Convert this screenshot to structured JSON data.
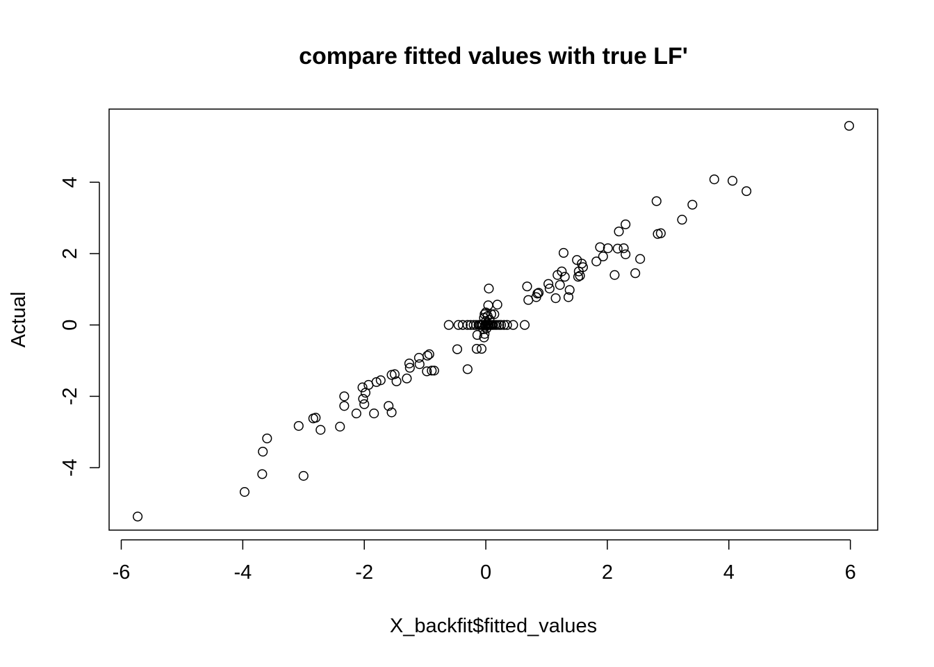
{
  "chart_data": {
    "type": "scatter",
    "title": "compare fitted values with true LF'",
    "xlabel": "X_backfit$fitted_values",
    "ylabel": "Actual",
    "xlim": [
      -6.2,
      6.45
    ],
    "ylim": [
      -5.75,
      6.05
    ],
    "xticks": [
      -6,
      -4,
      -2,
      0,
      2,
      4,
      6
    ],
    "xtick_labels": [
      "-6",
      "-4",
      "-2",
      "0",
      "2",
      "4",
      "6"
    ],
    "yticks": [
      -4,
      -2,
      0,
      2,
      4
    ],
    "ytick_labels": [
      "-4",
      "-2",
      "0",
      "2",
      "4"
    ],
    "grid": false,
    "marker": "open-circle",
    "points": [
      [
        -5.73,
        -5.37
      ],
      [
        -3.97,
        -4.68
      ],
      [
        -3.68,
        -4.18
      ],
      [
        -3.67,
        -3.55
      ],
      [
        -3.6,
        -3.18
      ],
      [
        -3.0,
        -4.23
      ],
      [
        -3.08,
        -2.83
      ],
      [
        -2.84,
        -2.62
      ],
      [
        -2.8,
        -2.6
      ],
      [
        -2.72,
        -2.94
      ],
      [
        -2.4,
        -2.85
      ],
      [
        -2.33,
        -2.27
      ],
      [
        -2.33,
        -2.0
      ],
      [
        -2.13,
        -2.48
      ],
      [
        -2.03,
        -1.75
      ],
      [
        -2.02,
        -2.07
      ],
      [
        -2.0,
        -2.22
      ],
      [
        -1.98,
        -1.9
      ],
      [
        -1.93,
        -1.68
      ],
      [
        -1.84,
        -2.48
      ],
      [
        -1.8,
        -1.6
      ],
      [
        -1.73,
        -1.55
      ],
      [
        -1.6,
        -2.27
      ],
      [
        -1.55,
        -2.45
      ],
      [
        -1.55,
        -1.4
      ],
      [
        -1.5,
        -1.38
      ],
      [
        -1.47,
        -1.58
      ],
      [
        -1.3,
        -1.5
      ],
      [
        -1.26,
        -1.08
      ],
      [
        -1.25,
        -1.2
      ],
      [
        -1.1,
        -0.92
      ],
      [
        -1.09,
        -1.1
      ],
      [
        -0.97,
        -1.3
      ],
      [
        -0.96,
        -0.86
      ],
      [
        -0.93,
        -0.82
      ],
      [
        -0.89,
        -1.28
      ],
      [
        -0.85,
        -1.28
      ],
      [
        -0.61,
        0.0
      ],
      [
        -0.47,
        -0.68
      ],
      [
        -0.45,
        0.0
      ],
      [
        -0.38,
        0.0
      ],
      [
        -0.3,
        -1.24
      ],
      [
        -0.3,
        0.0
      ],
      [
        -0.25,
        0.0
      ],
      [
        -0.2,
        0.0
      ],
      [
        -0.16,
        0.0
      ],
      [
        -0.15,
        -0.67
      ],
      [
        -0.14,
        -0.28
      ],
      [
        -0.12,
        0.0
      ],
      [
        -0.1,
        0.0
      ],
      [
        -0.08,
        0.0
      ],
      [
        -0.07,
        -0.67
      ],
      [
        -0.06,
        0.0
      ],
      [
        -0.05,
        0.0
      ],
      [
        -0.04,
        -0.12
      ],
      [
        -0.03,
        -0.35
      ],
      [
        -0.03,
        0.2
      ],
      [
        -0.02,
        -0.25
      ],
      [
        -0.02,
        0.3
      ],
      [
        -0.01,
        0.0
      ],
      [
        -0.01,
        -0.05
      ],
      [
        0.0,
        0.1
      ],
      [
        0.0,
        0.35
      ],
      [
        0.0,
        0.0
      ],
      [
        0.01,
        -0.1
      ],
      [
        0.02,
        0.05
      ],
      [
        0.03,
        0.25
      ],
      [
        0.03,
        0.0
      ],
      [
        0.04,
        0.55
      ],
      [
        0.05,
        0.0
      ],
      [
        0.05,
        1.02
      ],
      [
        0.06,
        0.15
      ],
      [
        0.07,
        0.0
      ],
      [
        0.08,
        0.0
      ],
      [
        0.09,
        0.3
      ],
      [
        0.1,
        0.0
      ],
      [
        0.12,
        0.0
      ],
      [
        0.14,
        0.3
      ],
      [
        0.15,
        0.0
      ],
      [
        0.18,
        0.0
      ],
      [
        0.19,
        0.57
      ],
      [
        0.22,
        0.0
      ],
      [
        0.25,
        0.0
      ],
      [
        0.3,
        0.0
      ],
      [
        0.35,
        0.0
      ],
      [
        0.45,
        0.0
      ],
      [
        0.64,
        0.0
      ],
      [
        0.68,
        1.08
      ],
      [
        0.7,
        0.7
      ],
      [
        0.83,
        0.78
      ],
      [
        0.85,
        0.88
      ],
      [
        0.87,
        0.9
      ],
      [
        1.03,
        1.15
      ],
      [
        1.05,
        1.02
      ],
      [
        1.15,
        0.75
      ],
      [
        1.18,
        1.4
      ],
      [
        1.22,
        1.12
      ],
      [
        1.25,
        1.5
      ],
      [
        1.28,
        2.02
      ],
      [
        1.3,
        1.35
      ],
      [
        1.36,
        0.78
      ],
      [
        1.38,
        0.98
      ],
      [
        1.5,
        1.82
      ],
      [
        1.52,
        1.35
      ],
      [
        1.53,
        1.5
      ],
      [
        1.55,
        1.38
      ],
      [
        1.58,
        1.72
      ],
      [
        1.6,
        1.62
      ],
      [
        1.82,
        1.78
      ],
      [
        1.88,
        2.18
      ],
      [
        1.93,
        1.92
      ],
      [
        2.01,
        2.15
      ],
      [
        2.12,
        1.4
      ],
      [
        2.17,
        2.14
      ],
      [
        2.19,
        2.62
      ],
      [
        2.27,
        2.15
      ],
      [
        2.3,
        2.82
      ],
      [
        2.3,
        1.98
      ],
      [
        2.46,
        1.45
      ],
      [
        2.54,
        1.85
      ],
      [
        2.81,
        3.47
      ],
      [
        2.83,
        2.55
      ],
      [
        2.88,
        2.57
      ],
      [
        3.23,
        2.95
      ],
      [
        3.4,
        3.37
      ],
      [
        3.76,
        4.08
      ],
      [
        4.06,
        4.04
      ],
      [
        4.29,
        3.75
      ],
      [
        5.98,
        5.58
      ]
    ]
  }
}
